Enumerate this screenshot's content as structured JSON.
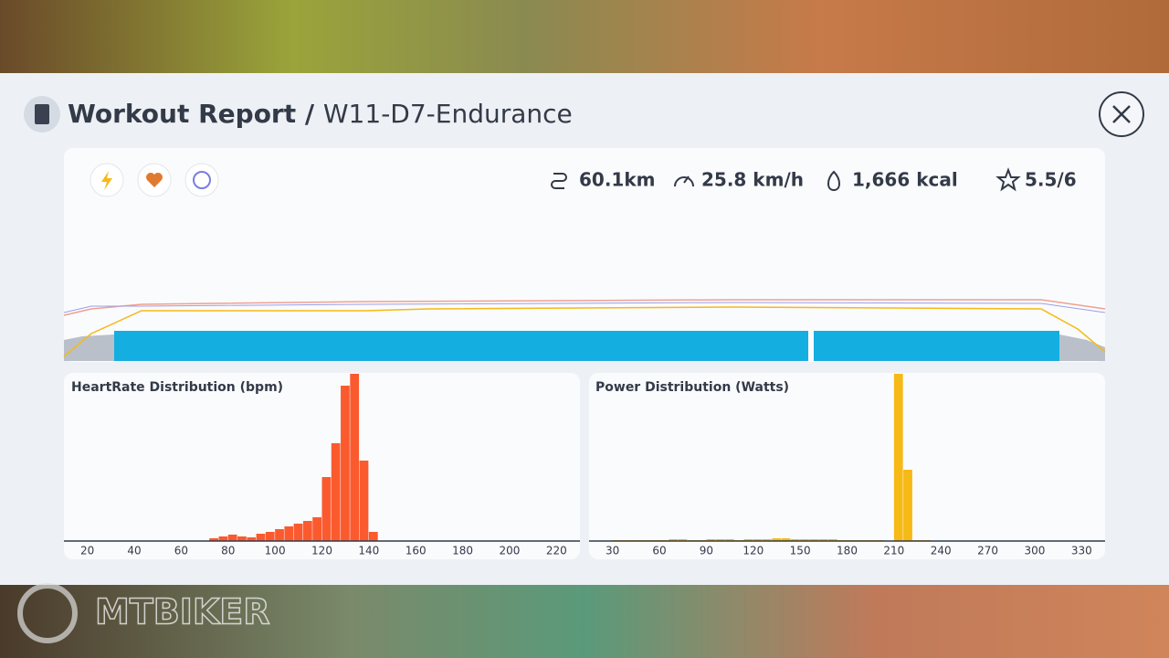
{
  "header": {
    "title": "Workout Report",
    "separator": "/",
    "workout": "W11-D7-Endurance"
  },
  "stats": {
    "distance": "60.1km",
    "speed": "25.8 km/h",
    "energy": "1,666 kcal",
    "rating": "5.5/6"
  },
  "charts": [
    {
      "type": "histogram",
      "title": "HeartRate Distribution (bpm)",
      "color": "#fb5a2e",
      "bins": [
        72,
        76,
        80,
        84,
        88,
        92,
        96,
        100,
        104,
        108,
        112,
        116,
        120,
        124,
        128,
        132,
        136,
        140,
        144
      ],
      "values": [
        3,
        5,
        7,
        5,
        4,
        8,
        10,
        13,
        16,
        19,
        22,
        26,
        70,
        107,
        170,
        183,
        88,
        10
      ],
      "xlim": [
        10,
        230
      ],
      "xticks": [
        20,
        40,
        60,
        80,
        100,
        120,
        140,
        160,
        180,
        200,
        220
      ]
    },
    {
      "type": "histogram",
      "title": "Power Distribution (Watts)",
      "color": "#f6b915",
      "bins": [
        30,
        36,
        42,
        48,
        54,
        60,
        66,
        72,
        78,
        84,
        90,
        96,
        102,
        108,
        114,
        120,
        126,
        132,
        138,
        144,
        150,
        156,
        162,
        168,
        174,
        180,
        186,
        192,
        198,
        204,
        210,
        216,
        222,
        228,
        234
      ],
      "values": [
        1,
        1,
        1,
        1,
        1,
        1,
        2,
        2,
        1,
        1,
        2,
        2,
        2,
        1,
        2,
        2,
        2,
        3,
        3,
        2,
        2,
        2,
        2,
        2,
        1,
        1,
        1,
        1,
        1,
        0,
        183,
        78,
        1,
        1
      ],
      "xlim": [
        15,
        345
      ],
      "xticks": [
        30,
        60,
        90,
        120,
        150,
        180,
        210,
        240,
        270,
        300,
        330
      ]
    }
  ],
  "watermark": "MTBIKER"
}
